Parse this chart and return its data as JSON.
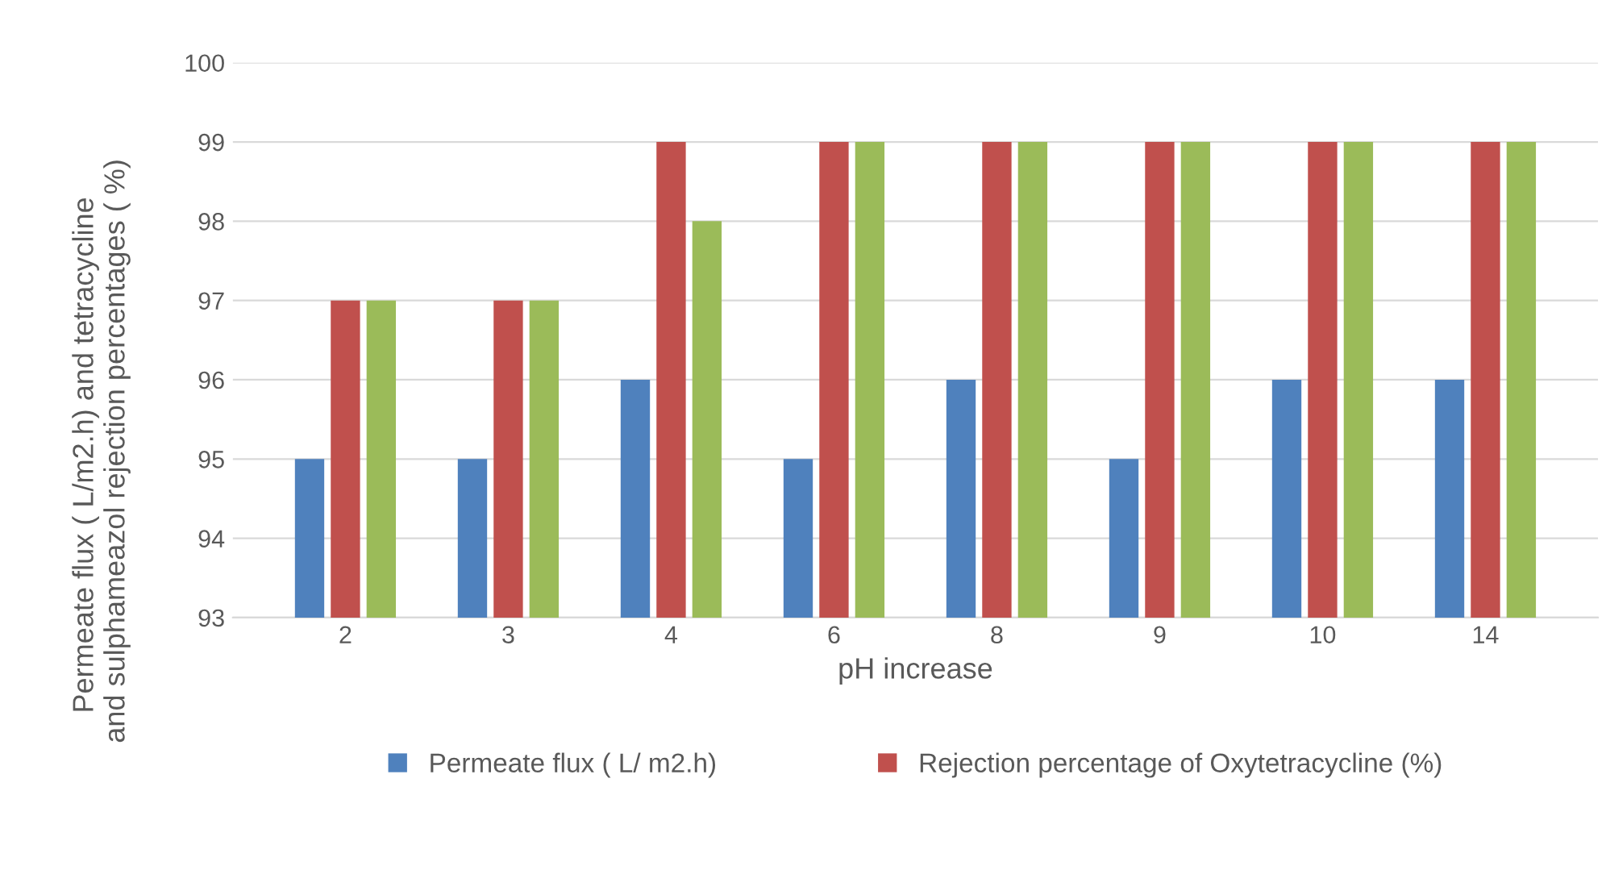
{
  "chart_data": {
    "type": "bar",
    "xlabel": "pH increase",
    "ylabel": "Permeate flux ( L/m2.h) and tetracycline  and sulphameazol rejection percentages ( %)",
    "categories": [
      "2",
      "3",
      "4",
      "6",
      "8",
      "9",
      "10",
      "14"
    ],
    "series": [
      {
        "name": "Permeate flux ( L/ m2.h)",
        "color": "#4f81bd",
        "values": [
          95,
          95,
          96,
          95,
          96,
          95,
          96,
          96
        ]
      },
      {
        "name": "Rejection percentage of Oxytetracycline (%)",
        "color": "#c0504d",
        "values": [
          97,
          97,
          99,
          99,
          99,
          99,
          99,
          99
        ]
      },
      {
        "color": "#9bbb59",
        "values": [
          97,
          97,
          98,
          99,
          99,
          99,
          99,
          99
        ]
      }
    ],
    "ylim": [
      93,
      100
    ],
    "yticks": [
      93,
      94,
      95,
      96,
      97,
      98,
      99,
      100
    ],
    "grid": "y",
    "legend": "bottom"
  }
}
